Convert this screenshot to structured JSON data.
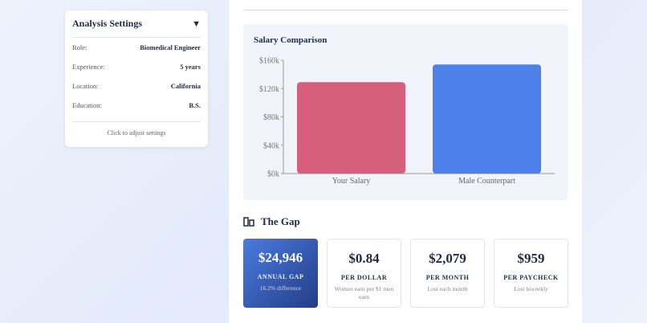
{
  "settings": {
    "title": "Analysis Settings",
    "toggle_icon": "triangle-down-icon",
    "rows": [
      {
        "label": "Role:",
        "value": "Biomedical Engineer"
      },
      {
        "label": "Experience:",
        "value": "5 years"
      },
      {
        "label": "Location:",
        "value": "California"
      },
      {
        "label": "Education:",
        "value": "B.S."
      }
    ],
    "hint": "Click to adjust settings"
  },
  "chart_data": {
    "type": "bar",
    "title": "Salary Comparison",
    "categories": [
      "Your Salary",
      "Male Counterpart"
    ],
    "values": [
      129054,
      154000
    ],
    "colors": [
      "#d6607c",
      "#4e80ea"
    ],
    "ylim": [
      0,
      160000
    ],
    "yticks": [
      "$0k",
      "$40k",
      "$80k",
      "$120k",
      "$160k"
    ],
    "ytick_values": [
      0,
      40000,
      80000,
      120000,
      160000
    ],
    "grid": false
  },
  "gap": {
    "title": "The Gap",
    "icon": "bar-chart-icon",
    "cards": [
      {
        "value": "$24,946",
        "label": "ANNUAL GAP",
        "sub": "16.2% difference"
      },
      {
        "value": "$0.84",
        "label": "PER DOLLAR",
        "sub": "Women earn per $1 men earn"
      },
      {
        "value": "$2,079",
        "label": "PER MONTH",
        "sub": "Lost each month"
      },
      {
        "value": "$959",
        "label": "PER PAYCHECK",
        "sub": "Lost biweekly"
      }
    ]
  }
}
